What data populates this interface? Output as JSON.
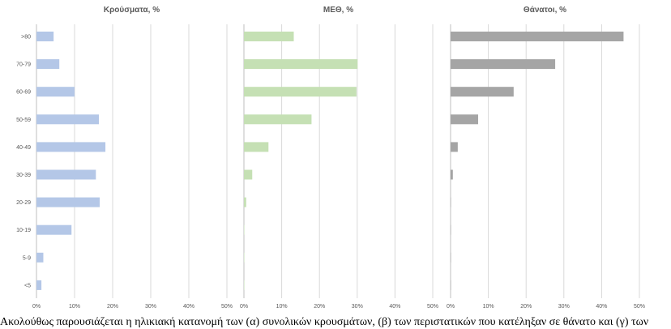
{
  "chart_data": [
    {
      "type": "bar",
      "orientation": "horizontal",
      "title": "Κρούσματα, %",
      "categories": [
        ">80",
        "70-79",
        "60-69",
        "50-59",
        "40-49",
        "30-39",
        "20-29",
        "10-19",
        "5-9",
        "<5"
      ],
      "values": [
        4.5,
        6.0,
        10.0,
        16.4,
        18.1,
        15.6,
        16.6,
        9.2,
        1.8,
        1.3
      ],
      "xlim": [
        0,
        50
      ],
      "xticks": [
        "0%",
        "10%",
        "20%",
        "30%",
        "40%",
        "50%"
      ],
      "grid": true,
      "color": "#b4c7e7"
    },
    {
      "type": "bar",
      "orientation": "horizontal",
      "title": "ΜΕΘ, %",
      "categories": [
        ">80",
        "70-79",
        "60-69",
        "50-59",
        "40-49",
        "30-39",
        "20-29",
        "10-19",
        "5-9",
        "<5"
      ],
      "values": [
        13.2,
        30.1,
        29.8,
        17.9,
        6.5,
        2.2,
        0.6,
        0.1,
        0,
        0
      ],
      "xlim": [
        0,
        50
      ],
      "xticks": [
        "0%",
        "10%",
        "20%",
        "30%",
        "40%",
        "50%"
      ],
      "grid": true,
      "color": "#c5e0b4"
    },
    {
      "type": "bar",
      "orientation": "horizontal",
      "title": "Θάνατοι, %",
      "categories": [
        ">80",
        "70-79",
        "60-69",
        "50-59",
        "40-49",
        "30-39",
        "20-29",
        "10-19",
        "5-9",
        "<5"
      ],
      "values": [
        45.8,
        27.7,
        16.7,
        7.3,
        1.9,
        0.6,
        0.1,
        0.05,
        0,
        0.1
      ],
      "xlim": [
        0,
        50
      ],
      "xticks": [
        "0%",
        "10%",
        "20%",
        "30%",
        "40%",
        "50%"
      ],
      "grid": true,
      "color": "#a5a5a5"
    }
  ],
  "caption": "Ακολούθως παρουσιάζεται η ηλικιακή κατανομή των (α) συνολικών κρουσμάτων, (β) των περιστατικών που κατέληξαν σε θάνατο και (γ) των"
}
